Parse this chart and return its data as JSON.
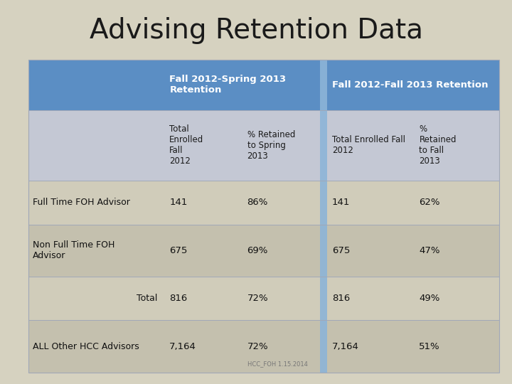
{
  "title": "Advising Retention Data",
  "title_fontsize": 28,
  "title_color": "#1a1a1a",
  "background_color": "#d6d2c0",
  "header_bg": "#5b8ec4",
  "header_text_color": "#ffffff",
  "subheader_bg": "#c4c8d4",
  "divider_color": "#8db4d8",
  "col_header1_line1": "Fall 2012-Spring 2013",
  "col_header1_line2": "Retention",
  "col_header2": "Fall 2012-Fall 2013 Retention",
  "sub_headers": [
    "Total\nEnrolled\nFall\n2012",
    "% Retained\nto Spring\n2013",
    "Total Enrolled Fall\n2012",
    "%\nRetained\nto Fall\n2013"
  ],
  "row_labels": [
    "Full Time FOH Advisor",
    "Non Full Time FOH\nAdvisor",
    "Total",
    "ALL Other HCC Advisors"
  ],
  "row_label_align": [
    "left",
    "left",
    "right",
    "left"
  ],
  "data": [
    [
      "141",
      "86%",
      "141",
      "62%"
    ],
    [
      "675",
      "69%",
      "675",
      "47%"
    ],
    [
      "816",
      "72%",
      "816",
      "49%"
    ],
    [
      "7,164",
      "72%",
      "7,164",
      "51%"
    ]
  ],
  "row_colors": [
    "#d0ccba",
    "#c4c0ae",
    "#d0ccba",
    "#c4c0ae"
  ],
  "footer": "HCC_FOH 1.15.2014",
  "line_color": "#a0a8b8"
}
